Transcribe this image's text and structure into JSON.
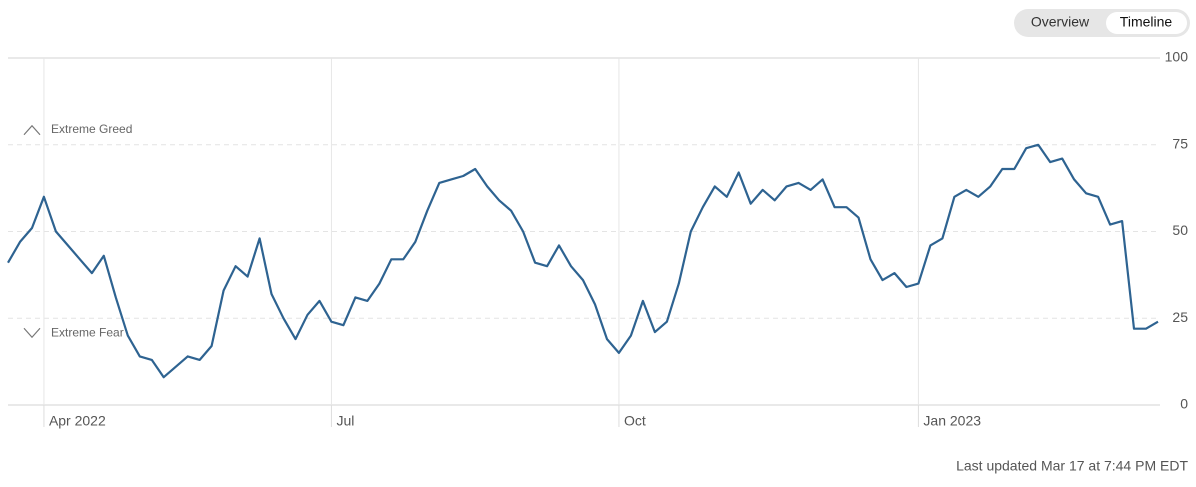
{
  "tabs": [
    "Overview",
    "Timeline"
  ],
  "active_tab": 1,
  "footer": "Last updated Mar 17 at 7:44 PM EDT",
  "chart_data": {
    "type": "line",
    "categories": [
      null,
      null,
      null,
      "Apr 2022",
      null,
      null,
      null,
      null,
      null,
      null,
      null,
      null,
      null,
      null,
      null,
      null,
      null,
      null,
      null,
      null,
      null,
      null,
      null,
      null,
      null,
      null,
      null,
      "Jul",
      null,
      null,
      null,
      null,
      null,
      null,
      null,
      null,
      null,
      null,
      null,
      null,
      null,
      null,
      null,
      null,
      null,
      null,
      null,
      null,
      null,
      null,
      null,
      "Oct",
      null,
      null,
      null,
      null,
      null,
      null,
      null,
      null,
      null,
      null,
      null,
      null,
      null,
      null,
      null,
      null,
      null,
      null,
      null,
      null,
      null,
      null,
      null,
      null,
      "Jan 2023",
      null,
      null,
      null,
      null,
      null,
      null,
      null,
      null,
      null,
      null,
      null,
      null,
      null,
      null,
      null,
      null,
      null,
      null,
      null,
      null
    ],
    "values": [
      41,
      47,
      51,
      60,
      50,
      46,
      42,
      38,
      43,
      31,
      20,
      14,
      13,
      8,
      11,
      14,
      13,
      17,
      33,
      40,
      37,
      48,
      32,
      25,
      19,
      26,
      30,
      24,
      23,
      31,
      30,
      35,
      42,
      42,
      47,
      56,
      64,
      65,
      66,
      68,
      63,
      59,
      56,
      50,
      41,
      40,
      46,
      40,
      36,
      29,
      19,
      15,
      20,
      30,
      21,
      24,
      35,
      50,
      57,
      63,
      60,
      67,
      58,
      62,
      59,
      63,
      64,
      62,
      65,
      57,
      57,
      54,
      42,
      36,
      38,
      34,
      35,
      46,
      48,
      60,
      62,
      60,
      63,
      68,
      68,
      74,
      75,
      70,
      71,
      65,
      61,
      60,
      52,
      53,
      22,
      22,
      24
    ],
    "color": "#2e6391",
    "ylim": [
      0,
      100
    ],
    "yticks": [
      0,
      25,
      50,
      75,
      100
    ],
    "annotations": [
      {
        "text": "Extreme Greed",
        "y": 75
      },
      {
        "text": "Extreme Fear",
        "y": 25
      }
    ]
  }
}
